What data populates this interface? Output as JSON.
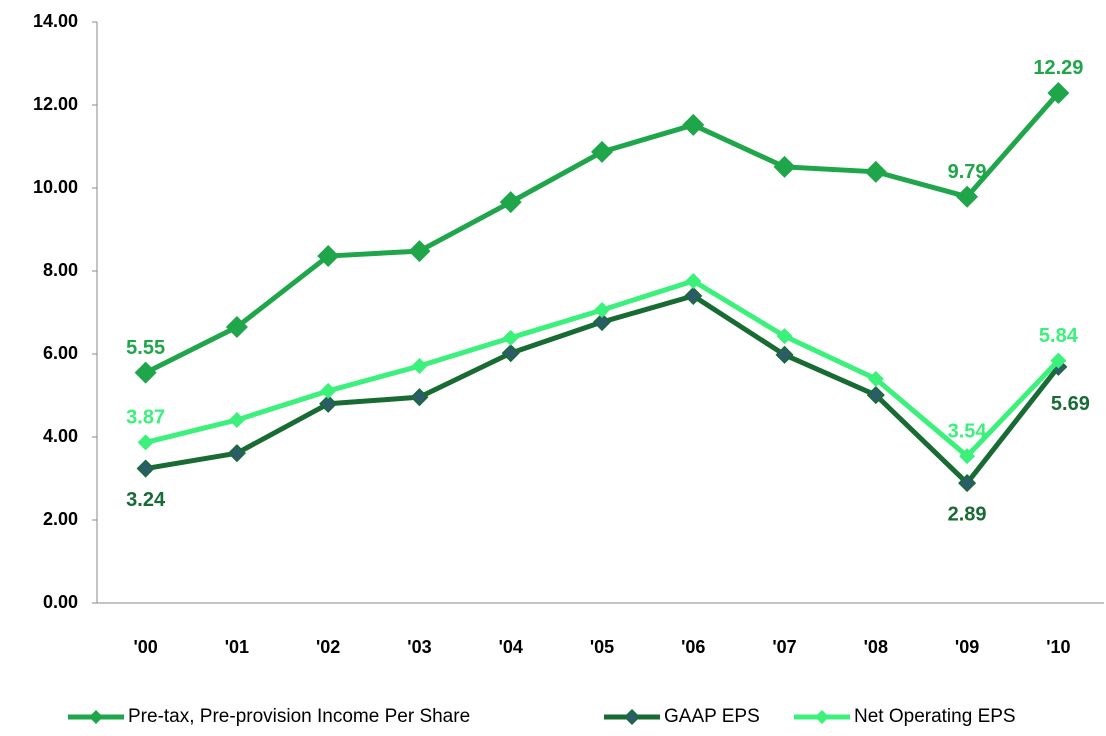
{
  "chart_data": {
    "type": "line",
    "categories": [
      "'00",
      "'01",
      "'02",
      "'03",
      "'04",
      "'05",
      "'06",
      "'07",
      "'08",
      "'09",
      "'10"
    ],
    "series": [
      {
        "name": "Pre-tax, Pre-provision Income Per Share",
        "color": "#1fa64b",
        "values": [
          5.55,
          6.65,
          8.36,
          8.48,
          9.66,
          10.87,
          11.52,
          10.51,
          10.39,
          9.79,
          12.29
        ],
        "value_labels": [
          "5.55",
          null,
          null,
          null,
          null,
          null,
          null,
          null,
          null,
          "9.79",
          "12.29"
        ]
      },
      {
        "name": "GAAP EPS",
        "color": "#176b33",
        "values": [
          3.24,
          3.61,
          4.8,
          4.96,
          6.02,
          6.77,
          7.4,
          5.98,
          5.01,
          2.89,
          5.69
        ],
        "value_labels": [
          "3.24",
          null,
          null,
          null,
          null,
          null,
          null,
          null,
          null,
          "2.89",
          "5.69"
        ]
      },
      {
        "name": "Net Operating EPS",
        "color": "#3cf07c",
        "values": [
          3.87,
          4.41,
          5.11,
          5.71,
          6.39,
          7.06,
          7.76,
          6.43,
          5.4,
          3.54,
          5.84
        ],
        "value_labels": [
          "3.87",
          null,
          null,
          null,
          null,
          null,
          null,
          null,
          null,
          "3.54",
          "5.84"
        ]
      }
    ],
    "ylim": [
      0,
      14
    ],
    "yticks": [
      {
        "value": 0,
        "label": "0.00"
      },
      {
        "value": 2,
        "label": "2.00"
      },
      {
        "value": 4,
        "label": "4.00"
      },
      {
        "value": 6,
        "label": "6.00"
      },
      {
        "value": 8,
        "label": "8.00"
      },
      {
        "value": 10,
        "label": "10.00"
      },
      {
        "value": 12,
        "label": "12.00"
      },
      {
        "value": 14,
        "label": "14.00"
      }
    ],
    "grid": false,
    "legend": "bottom"
  }
}
